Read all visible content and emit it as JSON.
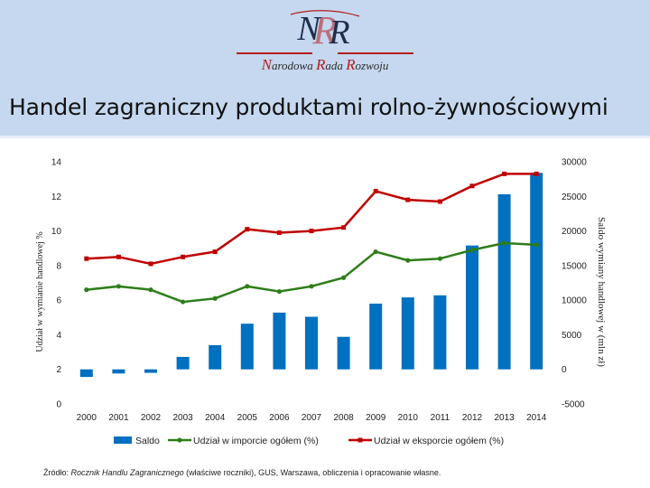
{
  "header": {
    "logo_monogram": "NR",
    "logo_words": [
      {
        "initial": "N",
        "rest": "arodowa "
      },
      {
        "initial": "R",
        "rest": "ada "
      },
      {
        "initial": "R",
        "rest": "ozwoju"
      }
    ]
  },
  "title": "Handel zagraniczny produktami rolno-żywnościowymi",
  "source": {
    "prefix": "Źródło: ",
    "italic": "Rocznik Handlu Zagranicznego",
    "suffix": " (właściwe roczniki), GUS, Warszawa, obliczenia i opracowanie własne."
  },
  "colors": {
    "header_bg": "#c5d8ef",
    "saldo": "#0070c0",
    "import": "#2e7d1a",
    "export": "#c00000",
    "brand_red": "#b51c1c"
  },
  "chart_data": {
    "type": "bar+line",
    "categories": [
      "2000",
      "2001",
      "2002",
      "2003",
      "2004",
      "2005",
      "2006",
      "2007",
      "2008",
      "2009",
      "2010",
      "2011",
      "2012",
      "2013",
      "2014"
    ],
    "series": [
      {
        "name": "Saldo",
        "type": "bar",
        "axis": "right",
        "values": [
          -1100,
          -600,
          -500,
          1800,
          3500,
          6600,
          8200,
          7600,
          4700,
          9500,
          10400,
          10700,
          17900,
          25300,
          28400
        ]
      },
      {
        "name": "Udział w imporcie ogółem (%)",
        "type": "line",
        "axis": "left",
        "values": [
          6.6,
          6.8,
          6.6,
          5.9,
          6.1,
          6.8,
          6.5,
          6.8,
          7.3,
          8.8,
          8.3,
          8.4,
          8.9,
          9.3,
          9.2
        ]
      },
      {
        "name": "Udział w eksporcie ogółem (%)",
        "type": "line",
        "axis": "left",
        "values": [
          8.4,
          8.5,
          8.1,
          8.5,
          8.8,
          10.1,
          9.9,
          10.0,
          10.2,
          12.3,
          11.8,
          11.7,
          12.6,
          13.3,
          13.3
        ]
      }
    ],
    "y_left": {
      "label": "Udział w wymianie handlowej %",
      "min": 0,
      "max": 14,
      "ticks": [
        "0",
        "2",
        "4",
        "6",
        "8",
        "10",
        "12",
        "14"
      ]
    },
    "y_right": {
      "label": "Saldo wymiany handlowej w (mln zł)",
      "min": -5000,
      "max": 30000,
      "ticks": [
        "-5000",
        "0",
        "5000",
        "10000",
        "15000",
        "20000",
        "25000",
        "30000"
      ]
    },
    "grid": false,
    "legend_position": "bottom"
  }
}
